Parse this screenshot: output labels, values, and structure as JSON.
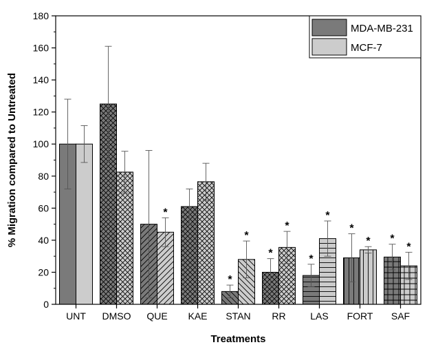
{
  "chart_data": {
    "type": "bar",
    "xlabel": "Treatments",
    "ylabel": "% Migration compared to Untreated",
    "ylim": [
      0,
      180
    ],
    "yticks": [
      0,
      20,
      40,
      60,
      80,
      100,
      120,
      140,
      160,
      180
    ],
    "categories": [
      "UNT",
      "DMSO",
      "QUE",
      "KAE",
      "STAN",
      "RR",
      "LAS",
      "FORT",
      "SAF"
    ],
    "patterns": [
      "solid",
      "crosshatch",
      "forward-diagonal",
      "crosshatch",
      "back-diagonal",
      "crosshatch",
      "horizontal",
      "vertical",
      "grid"
    ],
    "legend_position": "top-right",
    "grid": false,
    "series": [
      {
        "name": "MDA-MB-231",
        "color": "#7a7a7a",
        "values": [
          100,
          125,
          50,
          61,
          8,
          20,
          18,
          29,
          29.5
        ],
        "errors": [
          28,
          36,
          46,
          11,
          4,
          8.5,
          7,
          15,
          8
        ],
        "significant": [
          false,
          false,
          false,
          false,
          true,
          true,
          true,
          true,
          true
        ]
      },
      {
        "name": "MCF-7",
        "color": "#cccccc",
        "values": [
          100,
          82.5,
          45,
          76.5,
          28,
          35.5,
          41,
          34,
          24
        ],
        "errors": [
          11.5,
          13,
          9,
          11.5,
          11.5,
          10,
          11,
          2,
          8.5
        ],
        "significant": [
          false,
          false,
          true,
          false,
          true,
          true,
          true,
          true,
          true
        ]
      }
    ],
    "annotation_symbol": "*"
  }
}
